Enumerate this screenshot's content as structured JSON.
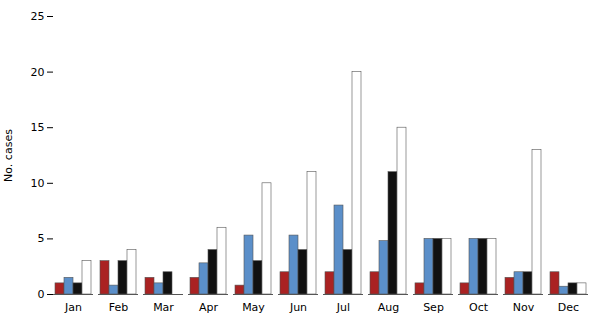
{
  "chart_data": {
    "type": "bar",
    "categories": [
      "Jan",
      "Feb",
      "Mar",
      "Apr",
      "May",
      "Jun",
      "Jul",
      "Aug",
      "Sep",
      "Oct",
      "Nov",
      "Dec"
    ],
    "series": [
      {
        "color": "#aa2222",
        "values": [
          1,
          3,
          1.5,
          1.5,
          0.8,
          2,
          2,
          2,
          1,
          1,
          1.5,
          2
        ]
      },
      {
        "color": "#5b8fc9",
        "values": [
          1.5,
          0.8,
          1,
          2.8,
          5.3,
          5.3,
          8,
          4.8,
          5,
          5,
          2,
          0.7
        ]
      },
      {
        "color": "#111111",
        "values": [
          1,
          3,
          2,
          4,
          3,
          4,
          4,
          11,
          5,
          5,
          2,
          1
        ]
      },
      {
        "color": "#ffffff",
        "values": [
          3,
          4,
          0,
          6,
          10,
          11,
          20,
          15,
          5,
          5,
          13,
          1
        ]
      }
    ],
    "ylabel": "No. cases",
    "ylim": [
      0,
      25
    ],
    "yticks": [
      0,
      5,
      10,
      15,
      20,
      25
    ],
    "grid": false
  }
}
